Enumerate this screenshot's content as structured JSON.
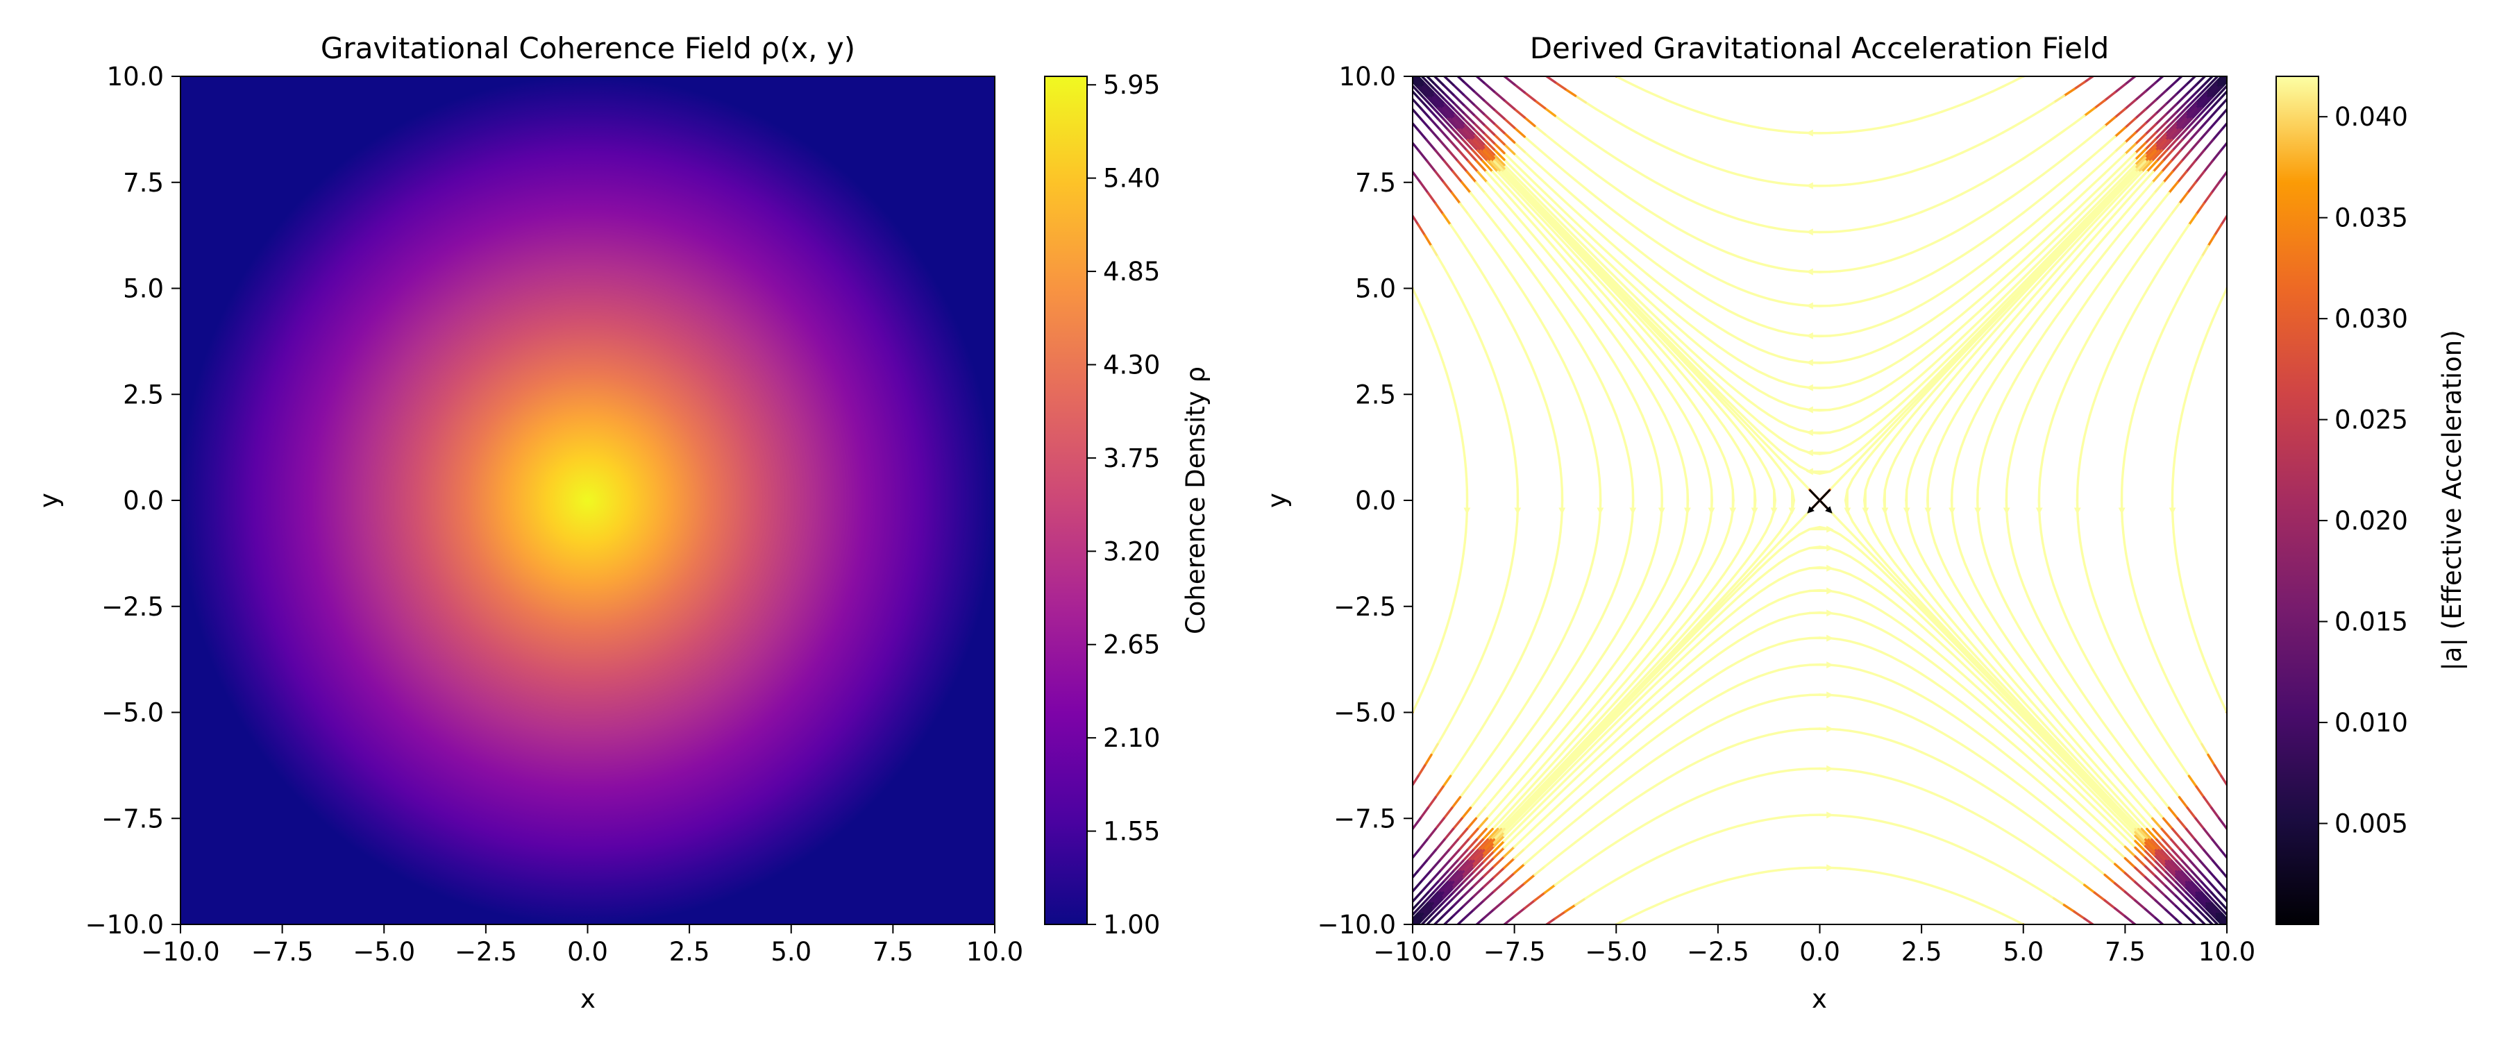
{
  "chart_data": [
    {
      "type": "heatmap",
      "title": "Gravitational Coherence Field ρ(x, y)",
      "xlabel": "x",
      "ylabel": "y",
      "xlim": [
        -10,
        10
      ],
      "ylim": [
        -10,
        10
      ],
      "xticks": [
        "−10.0",
        "−7.5",
        "−5.0",
        "−2.5",
        "0.0",
        "2.5",
        "5.0",
        "7.5",
        "10.0"
      ],
      "yticks": [
        "−10.0",
        "−7.5",
        "−5.0",
        "−2.5",
        "0.0",
        "2.5",
        "5.0",
        "7.5",
        "10.0"
      ],
      "field": {
        "form": "gaussian",
        "center": [
          0,
          0
        ],
        "base": 1.0,
        "peak": 6.0,
        "sigma": 2.5
      },
      "colormap": "plasma",
      "colorbar": {
        "label": "Coherence Density ρ",
        "range": [
          1.0,
          6.0
        ],
        "ticks": [
          "1.00",
          "1.55",
          "2.10",
          "2.65",
          "3.20",
          "3.75",
          "4.30",
          "4.85",
          "5.40",
          "5.95"
        ]
      }
    },
    {
      "type": "streamplot",
      "title": "Derived Gravitational Acceleration Field",
      "xlabel": "x",
      "ylabel": "y",
      "xlim": [
        -10,
        10
      ],
      "ylim": [
        -10,
        10
      ],
      "xticks": [
        "−10.0",
        "−7.5",
        "−5.0",
        "−2.5",
        "0.0",
        "2.5",
        "5.0",
        "7.5",
        "10.0"
      ],
      "yticks": [
        "−10.0",
        "−7.5",
        "−5.0",
        "−2.5",
        "0.0",
        "2.5",
        "5.0",
        "7.5",
        "10.0"
      ],
      "vector_field": {
        "u": "-x * k(x,y)",
        "v": "y * k(x,y)",
        "saddle_at": [
          0,
          0
        ],
        "max_magnitude": 0.042
      },
      "colormap": "inferno",
      "colorbar": {
        "label": "|a| (Effective Acceleration)",
        "range": [
          0.0,
          0.042
        ],
        "ticks": [
          "0.005",
          "0.010",
          "0.015",
          "0.020",
          "0.025",
          "0.030",
          "0.035",
          "0.040"
        ]
      }
    }
  ]
}
